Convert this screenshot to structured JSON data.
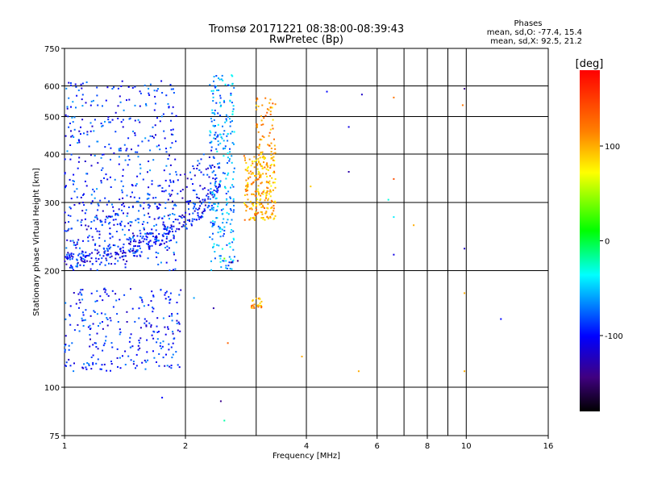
{
  "chart_data": {
    "type": "scatter",
    "title": "Tromsø 20171221 08:38:00-08:39:43",
    "subtitle": "RwPretec (Bp)",
    "stats": {
      "heading": "Phases",
      "line_o": "mean, sd,O:  -77.4, 15.4",
      "line_x": "mean, sd,X:  92.5, 21.2"
    },
    "xlabel": "Frequency [MHz]",
    "ylabel": "Stationary phase Virtual Height [km]",
    "x_scale": "log",
    "y_scale": "log",
    "xlim": [
      1,
      16
    ],
    "ylim": [
      75,
      750
    ],
    "x_ticks": [
      1,
      2,
      4,
      6,
      8,
      10,
      16
    ],
    "x_tick_labels": [
      "1",
      "2",
      "4",
      "6",
      "8",
      "10",
      "16"
    ],
    "x_grid": [
      1,
      2,
      3,
      4,
      6,
      7,
      8,
      9,
      10
    ],
    "y_ticks": [
      75,
      100,
      200,
      300,
      400,
      500,
      600,
      750
    ],
    "y_tick_labels": [
      "75",
      "100",
      "200",
      "300",
      "400",
      "500",
      "600",
      "750"
    ],
    "y_grid": [
      100,
      200,
      300,
      400,
      500,
      600
    ],
    "grid": true,
    "colorbar": {
      "label": "[deg]",
      "range": [
        -180,
        180
      ],
      "ticks": [
        100,
        0,
        -100
      ],
      "tick_labels": [
        "100",
        "0",
        "-100"
      ],
      "colors": [
        "#ff0000",
        "#ff8000",
        "#ffff00",
        "#00ff00",
        "#00ffff",
        "#0000ff",
        "#400080",
        "#000000"
      ]
    },
    "clusters": [
      {
        "name": "",
        "f_range": [
          1.0,
          2.45
        ],
        "type": "trace",
        "n": 500,
        "phase": -100
      },
      {
        "name": "",
        "f_range": [
          1.0,
          1.9
        ],
        "h_range": [
          200,
          620
        ],
        "n": 420,
        "phase": -90
      },
      {
        "name": "",
        "f_range": [
          2.3,
          2.65
        ],
        "h_range": [
          200,
          640
        ],
        "n": 260,
        "phase": -60
      },
      {
        "name": "",
        "f_range": [
          2.8,
          3.35
        ],
        "h_range": [
          270,
          400
        ],
        "n": 240,
        "phase": 100
      },
      {
        "name": "",
        "f_range": [
          3.0,
          3.35
        ],
        "h_range": [
          400,
          560
        ],
        "n": 60,
        "phase": 110
      },
      {
        "name": "",
        "f_range": [
          1.0,
          1.95
        ],
        "h_range": [
          110,
          180
        ],
        "n": 260,
        "phase": -95
      },
      {
        "name": "",
        "f_range": [
          2.9,
          3.1
        ],
        "h_range": [
          160,
          170
        ],
        "n": 25,
        "phase": 110
      }
    ],
    "sparse_points": [
      {
        "f": 4.5,
        "h": 580,
        "phase": -100
      },
      {
        "f": 5.1,
        "h": 470,
        "phase": -110
      },
      {
        "f": 5.5,
        "h": 570,
        "phase": -120
      },
      {
        "f": 5.1,
        "h": 360,
        "phase": -130
      },
      {
        "f": 6.6,
        "h": 560,
        "phase": 120
      },
      {
        "f": 6.6,
        "h": 345,
        "phase": 140
      },
      {
        "f": 6.4,
        "h": 305,
        "phase": -30
      },
      {
        "f": 6.6,
        "h": 275,
        "phase": -40
      },
      {
        "f": 6.6,
        "h": 220,
        "phase": -110
      },
      {
        "f": 7.4,
        "h": 262,
        "phase": 100
      },
      {
        "f": 9.9,
        "h": 590,
        "phase": -140
      },
      {
        "f": 9.8,
        "h": 535,
        "phase": 120
      },
      {
        "f": 9.9,
        "h": 228,
        "phase": -120
      },
      {
        "f": 9.9,
        "h": 175,
        "phase": 100
      },
      {
        "f": 9.9,
        "h": 110,
        "phase": 100
      },
      {
        "f": 12.2,
        "h": 150,
        "phase": -100
      },
      {
        "f": 3.9,
        "h": 120,
        "phase": 100
      },
      {
        "f": 5.4,
        "h": 110,
        "phase": 100
      },
      {
        "f": 4.1,
        "h": 330,
        "phase": 90
      },
      {
        "f": 1.1,
        "h": 605,
        "phase": -110
      },
      {
        "f": 2.45,
        "h": 92,
        "phase": -140
      },
      {
        "f": 2.5,
        "h": 82,
        "phase": -20
      },
      {
        "f": 1.75,
        "h": 94,
        "phase": -100
      },
      {
        "f": 2.5,
        "h": 215,
        "phase": 40
      },
      {
        "f": 2.6,
        "h": 210,
        "phase": -150
      },
      {
        "f": 2.7,
        "h": 212,
        "phase": -140
      },
      {
        "f": 2.35,
        "h": 160,
        "phase": -130
      },
      {
        "f": 2.55,
        "h": 130,
        "phase": 130
      },
      {
        "f": 2.1,
        "h": 170,
        "phase": -60
      }
    ]
  }
}
